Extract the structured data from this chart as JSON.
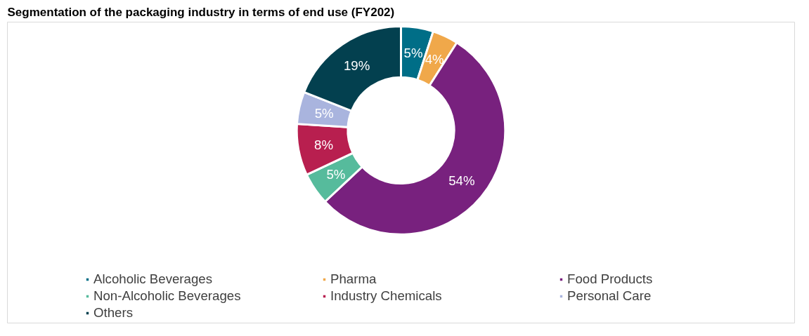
{
  "chart_data": {
    "type": "donut",
    "title": "Segmentation of the packaging industry in terms of end use (FY202)",
    "categories": [
      "Alcoholic Beverages",
      "Pharma",
      "Food Products",
      "Non-Alcoholic Beverages",
      "Industry Chemicals",
      "Personal Care",
      "Others"
    ],
    "values": [
      5,
      4,
      54,
      5,
      8,
      5,
      19
    ],
    "colors": [
      "#006e87",
      "#f0a84a",
      "#78217e",
      "#56bb9c",
      "#b81f4f",
      "#a9b4de",
      "#03404f"
    ],
    "value_labels": [
      "5%",
      "4%",
      "54%",
      "5%",
      "8%",
      "5%",
      "19%"
    ],
    "legend": "bottom"
  }
}
